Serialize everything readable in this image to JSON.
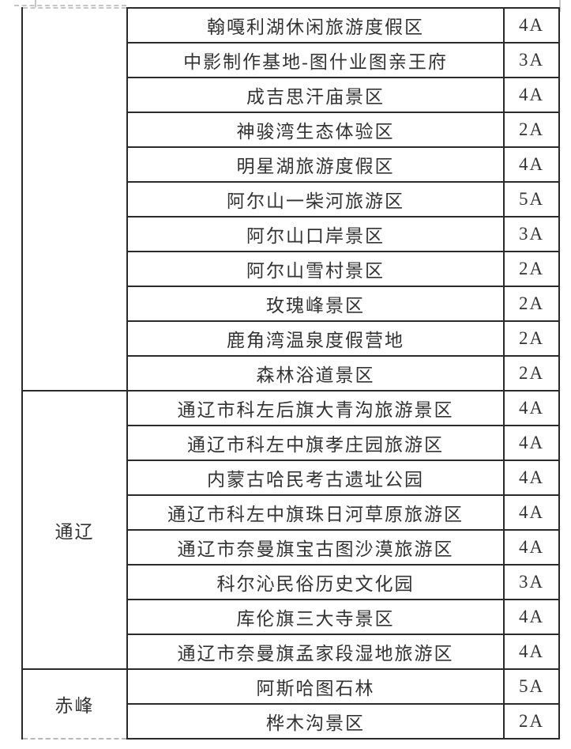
{
  "document": {
    "colors": {
      "background": "#ffffff",
      "table_border": "#2b2b2b",
      "faint_page_break": "#c6c6c6",
      "text": "#333333"
    }
  },
  "table": {
    "groups": [
      {
        "region": "",
        "rows": [
          {
            "name": "翰嘎利湖休闲旅游度假区",
            "rating": "4A"
          },
          {
            "name": "中影制作基地-图什业图亲王府",
            "rating": "3A"
          },
          {
            "name": "成吉思汗庙景区",
            "rating": "4A"
          },
          {
            "name": "神骏湾生态体验区",
            "rating": "2A"
          },
          {
            "name": "明星湖旅游度假区",
            "rating": "4A"
          },
          {
            "name": "阿尔山一柴河旅游区",
            "rating": "5A"
          },
          {
            "name": "阿尔山口岸景区",
            "rating": "3A"
          },
          {
            "name": "阿尔山雪村景区",
            "rating": "2A"
          },
          {
            "name": "玫瑰峰景区",
            "rating": "2A"
          },
          {
            "name": "鹿角湾温泉度假营地",
            "rating": "2A"
          },
          {
            "name": "森林浴道景区",
            "rating": "2A"
          }
        ]
      },
      {
        "region": "通辽",
        "rows": [
          {
            "name": "通辽市科左后旗大青沟旅游景区",
            "rating": "4A"
          },
          {
            "name": "通辽市科左中旗孝庄园旅游区",
            "rating": "4A"
          },
          {
            "name": "内蒙古哈民考古遗址公园",
            "rating": "4A"
          },
          {
            "name": "通辽市科左中旗珠日河草原旅游区",
            "rating": "4A"
          },
          {
            "name": "通辽市奈曼旗宝古图沙漠旅游区",
            "rating": "4A"
          },
          {
            "name": "科尔沁民俗历史文化园",
            "rating": "3A"
          },
          {
            "name": "库伦旗三大寺景区",
            "rating": "4A"
          },
          {
            "name": "通辽市奈曼旗孟家段湿地旅游区",
            "rating": "4A"
          }
        ]
      },
      {
        "region": "赤峰",
        "rows": [
          {
            "name": "阿斯哈图石林",
            "rating": "5A"
          },
          {
            "name": "桦木沟景区",
            "rating": "2A"
          }
        ]
      }
    ]
  }
}
